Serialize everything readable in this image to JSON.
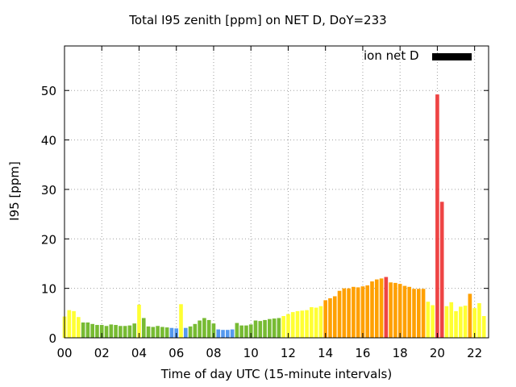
{
  "chart_data": {
    "type": "bar",
    "title": "Total I95 zenith [ppm] on NET D, DoY=233",
    "xlabel": "Time of day UTC (15-minute intervals)",
    "ylabel": "I95 [ppm]",
    "legend": [
      {
        "name": "ion net D",
        "color": "#000000"
      }
    ],
    "legend_position": "top-right",
    "xlim": [
      0,
      22.75
    ],
    "ylim": [
      0,
      59
    ],
    "x_ticks": [
      "00",
      "02",
      "04",
      "06",
      "08",
      "10",
      "12",
      "14",
      "16",
      "18",
      "20",
      "22"
    ],
    "y_ticks": [
      "0",
      "10",
      "20",
      "30",
      "40",
      "50"
    ],
    "grid": true,
    "colors": {
      "yellow": "#ffff33",
      "green": "#77bb33",
      "blue": "#5599ee",
      "orange": "#ffa000",
      "red": "#ee4444"
    },
    "bars": [
      {
        "t": "00:00",
        "v": 4.3,
        "c": "yellow"
      },
      {
        "t": "00:15",
        "v": 5.6,
        "c": "yellow"
      },
      {
        "t": "00:30",
        "v": 5.4,
        "c": "yellow"
      },
      {
        "t": "00:45",
        "v": 4.2,
        "c": "yellow"
      },
      {
        "t": "01:00",
        "v": 3.1,
        "c": "green"
      },
      {
        "t": "01:15",
        "v": 3.1,
        "c": "green"
      },
      {
        "t": "01:30",
        "v": 2.8,
        "c": "green"
      },
      {
        "t": "01:45",
        "v": 2.6,
        "c": "green"
      },
      {
        "t": "02:00",
        "v": 2.6,
        "c": "green"
      },
      {
        "t": "02:15",
        "v": 2.4,
        "c": "green"
      },
      {
        "t": "02:30",
        "v": 2.7,
        "c": "green"
      },
      {
        "t": "02:45",
        "v": 2.6,
        "c": "green"
      },
      {
        "t": "03:00",
        "v": 2.4,
        "c": "green"
      },
      {
        "t": "03:15",
        "v": 2.4,
        "c": "green"
      },
      {
        "t": "03:30",
        "v": 2.5,
        "c": "green"
      },
      {
        "t": "03:45",
        "v": 2.9,
        "c": "green"
      },
      {
        "t": "04:00",
        "v": 6.7,
        "c": "yellow"
      },
      {
        "t": "04:15",
        "v": 4.0,
        "c": "green"
      },
      {
        "t": "04:30",
        "v": 2.3,
        "c": "green"
      },
      {
        "t": "04:45",
        "v": 2.2,
        "c": "green"
      },
      {
        "t": "05:00",
        "v": 2.4,
        "c": "green"
      },
      {
        "t": "05:15",
        "v": 2.2,
        "c": "green"
      },
      {
        "t": "05:30",
        "v": 2.1,
        "c": "green"
      },
      {
        "t": "05:45",
        "v": 2.0,
        "c": "blue"
      },
      {
        "t": "06:00",
        "v": 1.9,
        "c": "blue"
      },
      {
        "t": "06:15",
        "v": 6.8,
        "c": "yellow"
      },
      {
        "t": "06:30",
        "v": 2.0,
        "c": "blue"
      },
      {
        "t": "06:45",
        "v": 2.3,
        "c": "green"
      },
      {
        "t": "07:00",
        "v": 2.8,
        "c": "green"
      },
      {
        "t": "07:15",
        "v": 3.5,
        "c": "green"
      },
      {
        "t": "07:30",
        "v": 4.0,
        "c": "green"
      },
      {
        "t": "07:45",
        "v": 3.6,
        "c": "green"
      },
      {
        "t": "08:00",
        "v": 2.9,
        "c": "green"
      },
      {
        "t": "08:15",
        "v": 1.7,
        "c": "blue"
      },
      {
        "t": "08:30",
        "v": 1.6,
        "c": "blue"
      },
      {
        "t": "08:45",
        "v": 1.6,
        "c": "blue"
      },
      {
        "t": "09:00",
        "v": 1.7,
        "c": "blue"
      },
      {
        "t": "09:15",
        "v": 3.0,
        "c": "green"
      },
      {
        "t": "09:30",
        "v": 2.5,
        "c": "green"
      },
      {
        "t": "09:45",
        "v": 2.5,
        "c": "green"
      },
      {
        "t": "10:00",
        "v": 2.7,
        "c": "green"
      },
      {
        "t": "10:15",
        "v": 3.5,
        "c": "green"
      },
      {
        "t": "10:30",
        "v": 3.4,
        "c": "green"
      },
      {
        "t": "10:45",
        "v": 3.6,
        "c": "green"
      },
      {
        "t": "11:00",
        "v": 3.8,
        "c": "green"
      },
      {
        "t": "11:15",
        "v": 3.9,
        "c": "green"
      },
      {
        "t": "11:30",
        "v": 4.0,
        "c": "green"
      },
      {
        "t": "11:45",
        "v": 4.4,
        "c": "yellow"
      },
      {
        "t": "12:00",
        "v": 4.8,
        "c": "yellow"
      },
      {
        "t": "12:15",
        "v": 5.2,
        "c": "yellow"
      },
      {
        "t": "12:30",
        "v": 5.4,
        "c": "yellow"
      },
      {
        "t": "12:45",
        "v": 5.5,
        "c": "yellow"
      },
      {
        "t": "13:00",
        "v": 5.6,
        "c": "yellow"
      },
      {
        "t": "13:15",
        "v": 6.2,
        "c": "yellow"
      },
      {
        "t": "13:30",
        "v": 6.1,
        "c": "yellow"
      },
      {
        "t": "13:45",
        "v": 6.4,
        "c": "yellow"
      },
      {
        "t": "14:00",
        "v": 7.6,
        "c": "orange"
      },
      {
        "t": "14:15",
        "v": 8.0,
        "c": "orange"
      },
      {
        "t": "14:30",
        "v": 8.4,
        "c": "orange"
      },
      {
        "t": "14:45",
        "v": 9.5,
        "c": "orange"
      },
      {
        "t": "15:00",
        "v": 10.0,
        "c": "orange"
      },
      {
        "t": "15:15",
        "v": 10.0,
        "c": "orange"
      },
      {
        "t": "15:30",
        "v": 10.3,
        "c": "orange"
      },
      {
        "t": "15:45",
        "v": 10.2,
        "c": "orange"
      },
      {
        "t": "16:00",
        "v": 10.4,
        "c": "orange"
      },
      {
        "t": "16:15",
        "v": 10.6,
        "c": "orange"
      },
      {
        "t": "16:30",
        "v": 11.4,
        "c": "orange"
      },
      {
        "t": "16:45",
        "v": 11.8,
        "c": "orange"
      },
      {
        "t": "17:00",
        "v": 12.0,
        "c": "orange"
      },
      {
        "t": "17:15",
        "v": 12.3,
        "c": "red"
      },
      {
        "t": "17:30",
        "v": 11.2,
        "c": "orange"
      },
      {
        "t": "17:45",
        "v": 11.1,
        "c": "orange"
      },
      {
        "t": "18:00",
        "v": 10.9,
        "c": "orange"
      },
      {
        "t": "18:15",
        "v": 10.5,
        "c": "orange"
      },
      {
        "t": "18:30",
        "v": 10.3,
        "c": "orange"
      },
      {
        "t": "18:45",
        "v": 9.9,
        "c": "orange"
      },
      {
        "t": "19:00",
        "v": 9.9,
        "c": "orange"
      },
      {
        "t": "19:15",
        "v": 9.9,
        "c": "orange"
      },
      {
        "t": "19:30",
        "v": 7.3,
        "c": "yellow"
      },
      {
        "t": "19:45",
        "v": 6.6,
        "c": "yellow"
      },
      {
        "t": "20:00",
        "v": 49.2,
        "c": "red"
      },
      {
        "t": "20:15",
        "v": 27.5,
        "c": "red"
      },
      {
        "t": "20:30",
        "v": 6.4,
        "c": "yellow"
      },
      {
        "t": "20:45",
        "v": 7.2,
        "c": "yellow"
      },
      {
        "t": "21:00",
        "v": 5.4,
        "c": "yellow"
      },
      {
        "t": "21:15",
        "v": 6.3,
        "c": "yellow"
      },
      {
        "t": "21:30",
        "v": 6.5,
        "c": "yellow"
      },
      {
        "t": "21:45",
        "v": 8.9,
        "c": "orange"
      },
      {
        "t": "22:00",
        "v": 6.0,
        "c": "yellow"
      },
      {
        "t": "22:15",
        "v": 7.0,
        "c": "yellow"
      },
      {
        "t": "22:30",
        "v": 4.4,
        "c": "yellow"
      }
    ]
  }
}
